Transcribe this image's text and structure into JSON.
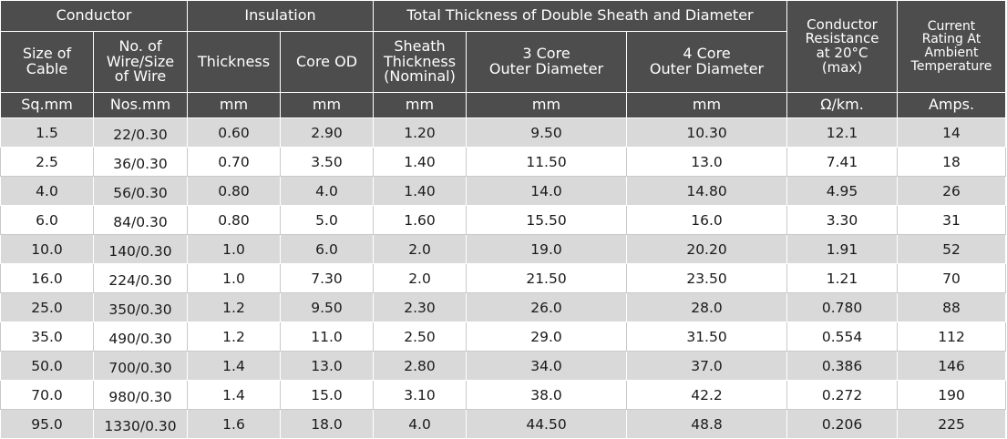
{
  "header": {
    "groups": {
      "conductor": "Conductor",
      "insulation": "Insulation",
      "sheath": "Total Thickness of Double Sheath and Diameter",
      "resistance": [
        "Conductor",
        "Resistance",
        "at 20°C",
        "(max)"
      ],
      "rating": [
        "Current",
        "Rating At",
        "Ambient",
        "Temperature"
      ]
    },
    "columns": {
      "size": [
        "Size of",
        "Cable"
      ],
      "wire": [
        "No. of",
        "Wire/Size",
        "of Wire"
      ],
      "thickness": "Thickness",
      "core_od": "Core OD",
      "sheath_thickness": [
        "Sheath",
        "Thickness",
        "(Nominal)"
      ],
      "od3": [
        "3 Core",
        "Outer Diameter"
      ],
      "od4": [
        "4 Core",
        "Outer Diameter"
      ]
    },
    "units": [
      "Sq.mm",
      "Nos.mm",
      "mm",
      "mm",
      "mm",
      "mm",
      "mm",
      "Ω/km.",
      "Amps."
    ]
  },
  "rows": [
    [
      "1.5",
      "22/0.30",
      "0.60",
      "2.90",
      "1.20",
      "9.50",
      "10.30",
      "12.1",
      "14"
    ],
    [
      "2.5",
      "36/0.30",
      "0.70",
      "3.50",
      "1.40",
      "11.50",
      "13.0",
      "7.41",
      "18"
    ],
    [
      "4.0",
      "56/0.30",
      "0.80",
      "4.0",
      "1.40",
      "14.0",
      "14.80",
      "4.95",
      "26"
    ],
    [
      "6.0",
      "84/0.30",
      "0.80",
      "5.0",
      "1.60",
      "15.50",
      "16.0",
      "3.30",
      "31"
    ],
    [
      "10.0",
      "140/0.30",
      "1.0",
      "6.0",
      "2.0",
      "19.0",
      "20.20",
      "1.91",
      "52"
    ],
    [
      "16.0",
      "224/0.30",
      "1.0",
      "7.30",
      "2.0",
      "21.50",
      "23.50",
      "1.21",
      "70"
    ],
    [
      "25.0",
      "350/0.30",
      "1.2",
      "9.50",
      "2.30",
      "26.0",
      "28.0",
      "0.780",
      "88"
    ],
    [
      "35.0",
      "490/0.30",
      "1.2",
      "11.0",
      "2.50",
      "29.0",
      "31.50",
      "0.554",
      "112"
    ],
    [
      "50.0",
      "700/0.30",
      "1.4",
      "13.0",
      "2.80",
      "34.0",
      "37.0",
      "0.386",
      "146"
    ],
    [
      "70.0",
      "980/0.30",
      "1.4",
      "15.0",
      "3.10",
      "38.0",
      "42.2",
      "0.272",
      "190"
    ],
    [
      "95.0",
      "1330/0.30",
      "1.6",
      "18.0",
      "4.0",
      "44.50",
      "48.8",
      "0.206",
      "225"
    ]
  ]
}
